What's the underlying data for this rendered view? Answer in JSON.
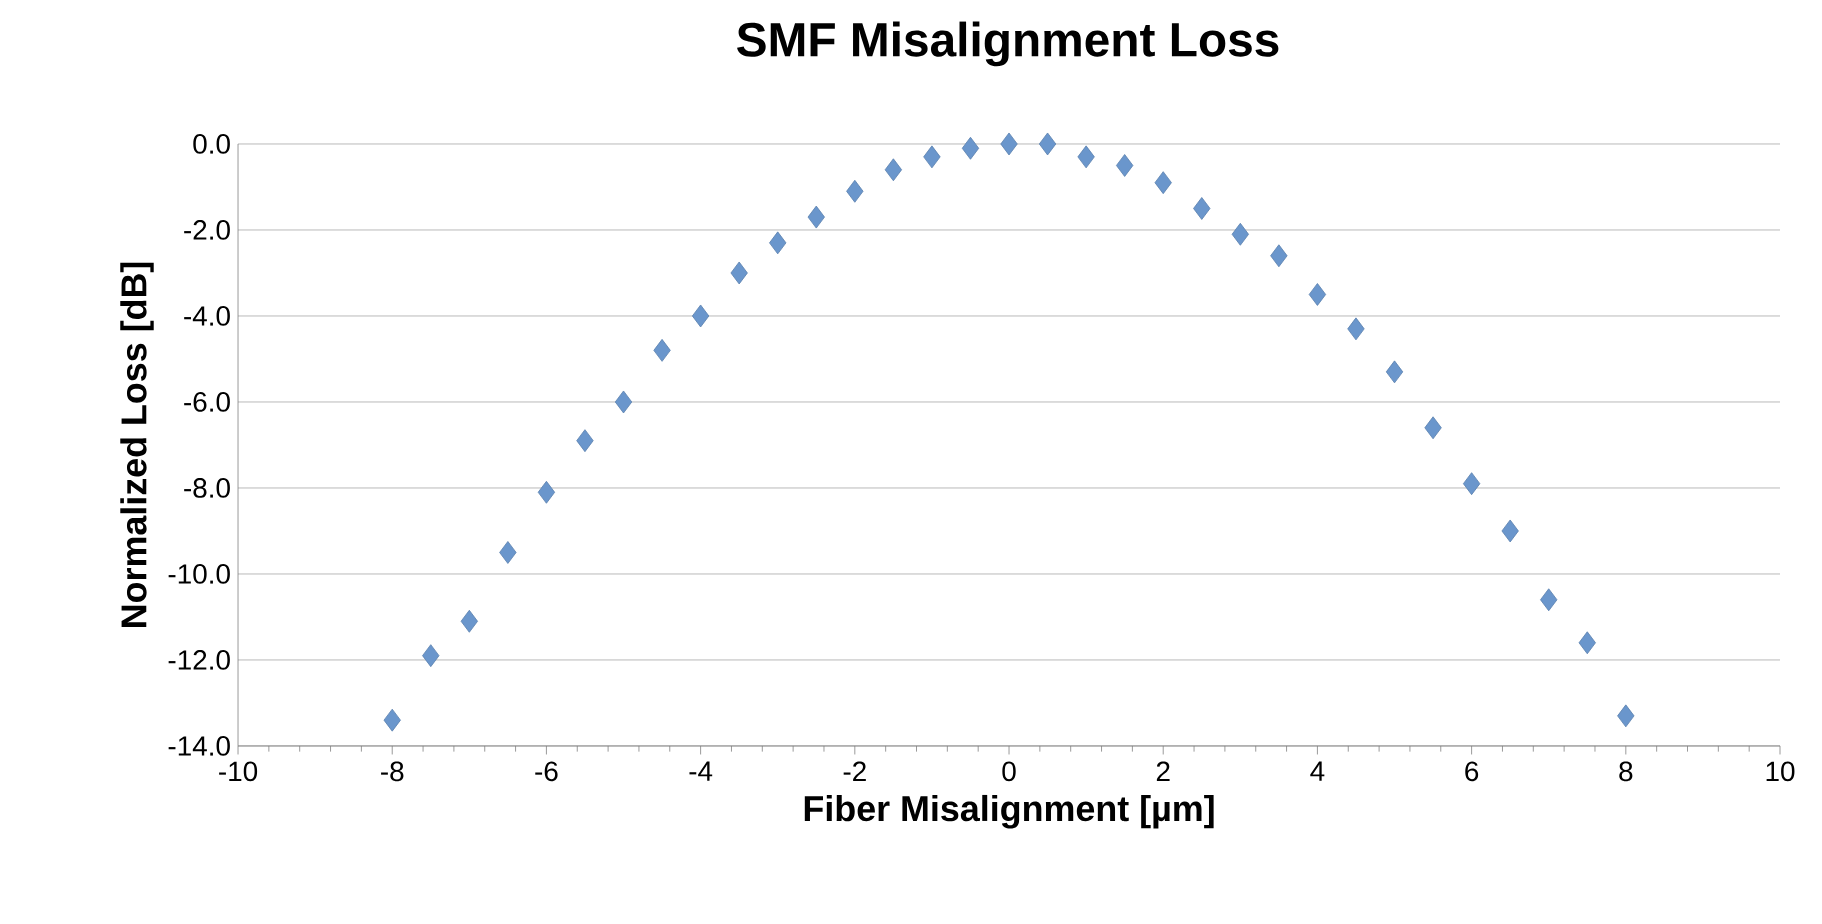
{
  "chart_data": {
    "type": "scatter",
    "title": "SMF Misalignment Loss",
    "xlabel": "Fiber Misalignment [µm]",
    "ylabel": "Normalized Loss [dB]",
    "x": [
      -8,
      -7.5,
      -7,
      -6.5,
      -6,
      -5.5,
      -5,
      -4.5,
      -4,
      -3.5,
      -3,
      -2.5,
      -2,
      -1.5,
      -1,
      -0.5,
      0,
      0.5,
      1,
      1.5,
      2,
      2.5,
      3,
      3.5,
      4,
      4.5,
      5,
      5.5,
      6,
      6.5,
      7,
      7.5,
      8
    ],
    "values": [
      -13.4,
      -11.9,
      -11.1,
      -9.5,
      -8.1,
      -6.9,
      -6.0,
      -4.8,
      -4.0,
      -3.0,
      -2.3,
      -1.7,
      -1.1,
      -0.6,
      -0.3,
      -0.1,
      0,
      0,
      -0.3,
      -0.5,
      -0.9,
      -1.5,
      -2.1,
      -2.6,
      -3.5,
      -4.3,
      -5.3,
      -6.6,
      -7.9,
      -9.0,
      -10.6,
      -11.6,
      -13.3
    ],
    "color": "#6a96cc",
    "marker": "diamond",
    "grid": "y",
    "xlim": [
      -10,
      10
    ],
    "xticks": [
      -10,
      -8,
      -6,
      -4,
      -2,
      0,
      2,
      4,
      6,
      8,
      10
    ],
    "ylim": [
      -14,
      0
    ],
    "yticks": [
      {
        "value": 0,
        "label": "0.0"
      },
      {
        "value": -2,
        "label": "-2.0"
      },
      {
        "value": -4,
        "label": "-4.0"
      },
      {
        "value": -6,
        "label": "-6.0"
      },
      {
        "value": -8,
        "label": "-8.0"
      },
      {
        "value": -10,
        "label": "-10.0"
      },
      {
        "value": -12,
        "label": "-12.0"
      },
      {
        "value": -14,
        "label": "-14.0"
      }
    ]
  }
}
